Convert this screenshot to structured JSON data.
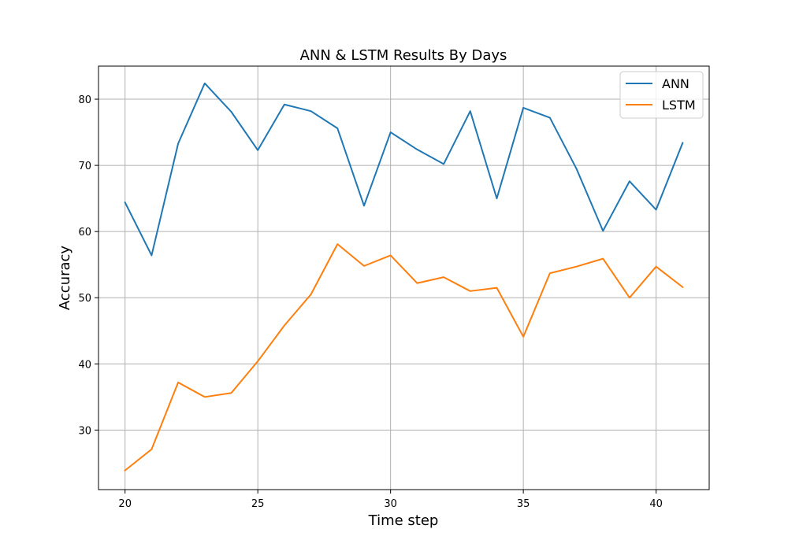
{
  "chart_data": {
    "type": "line",
    "title": "ANN & LSTM Results By Days",
    "xlabel": "Time step",
    "ylabel": "Accuracy",
    "x": [
      20,
      21,
      22,
      23,
      24,
      25,
      26,
      27,
      28,
      29,
      30,
      31,
      32,
      33,
      34,
      35,
      36,
      37,
      38,
      39,
      40,
      41
    ],
    "xlim": [
      19,
      42
    ],
    "ylim": [
      21,
      85
    ],
    "xticks": [
      20,
      25,
      30,
      35,
      40
    ],
    "yticks": [
      30,
      40,
      50,
      60,
      70,
      80
    ],
    "grid": true,
    "legend_position": "top-right",
    "series": [
      {
        "name": "ANN",
        "color": "#1f77b4",
        "values": [
          64.4,
          56.4,
          73.3,
          82.4,
          78.1,
          72.3,
          79.2,
          78.2,
          75.6,
          63.9,
          75.0,
          72.4,
          70.2,
          78.2,
          65.0,
          78.7,
          77.2,
          69.5,
          60.1,
          67.6,
          63.3,
          73.4
        ]
      },
      {
        "name": "LSTM",
        "color": "#ff7f0e",
        "values": [
          23.9,
          27.1,
          37.2,
          35.0,
          35.6,
          40.4,
          45.8,
          50.5,
          58.1,
          54.8,
          56.4,
          52.2,
          53.1,
          51.0,
          51.5,
          44.1,
          53.7,
          54.7,
          55.9,
          50.0,
          54.7,
          51.6
        ]
      }
    ]
  }
}
